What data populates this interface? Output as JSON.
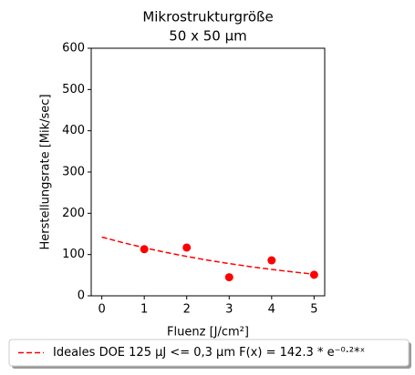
{
  "chart_data": {
    "type": "scatter",
    "title": [
      "Mikrostrukturgröße",
      "50 x 50 µm"
    ],
    "x_label": "Fluenz [J/cm²]",
    "y_label": "Herstellungsrate [Mik/sec]",
    "xlim": [
      -0.25,
      5.25
    ],
    "xticks": [
      0,
      1,
      2,
      3,
      4,
      5
    ],
    "ylim": [
      0,
      600
    ],
    "yticks": [
      0,
      100,
      200,
      300,
      400,
      500,
      600
    ],
    "legend": "lower center",
    "series": [
      {
        "name": "Ideales DOE 125 µJ <= 0,3 µm F(x) = 142.3 * e⁻⁰·²*ˣ",
        "color": "#ff0000",
        "style": "dashed",
        "x": [
          0,
          0.5,
          1,
          1.5,
          2,
          2.5,
          3,
          3.5,
          4,
          4.5,
          5
        ],
        "values": [
          142.3,
          128.8,
          116.5,
          105.4,
          95.4,
          86.3,
          78.1,
          70.7,
          63.9,
          57.9,
          52.3
        ]
      },
      {
        "color": "#ff0000",
        "style": "markers",
        "x": [
          1,
          2,
          3,
          4,
          5
        ],
        "values": [
          113,
          117,
          45,
          86,
          51
        ]
      }
    ]
  }
}
